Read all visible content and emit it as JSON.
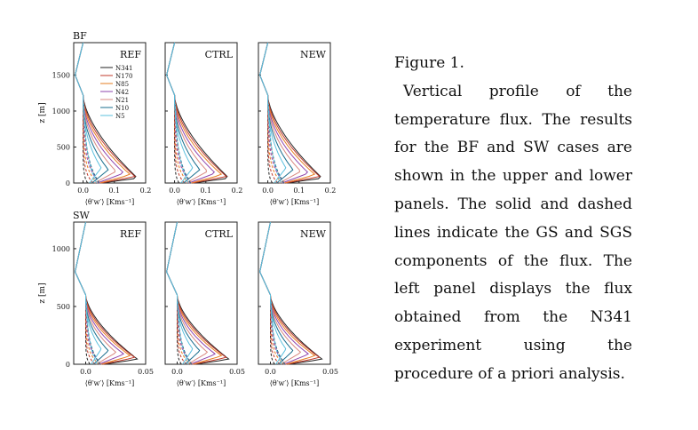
{
  "caption": {
    "title": "Figure 1.",
    "body": "Vertical profile of the temperature flux. The results for the BF and SW cases are shown in the upper and lower panels. The solid and dashed lines indicate the GS and SGS components of the flux. The left panel displays the flux obtained from the N341 experiment using the procedure of a priori analysis."
  },
  "colors": {
    "N341": "#222222",
    "N170": "#c0392b",
    "N85": "#e67e22",
    "N42": "#8e44ad",
    "N21": "#d98880",
    "N10": "#1a6e8e",
    "N5": "#5bc0de"
  },
  "chart_data": [
    {
      "row": "BF",
      "type": "line",
      "ylabel": "z [m]",
      "xlabel": "⟨θ′w′⟩ [Kms⁻¹]",
      "xlim": [
        -0.03,
        0.2
      ],
      "ylim": [
        0,
        1950
      ],
      "xticks": [
        "0.0",
        "0.1",
        "0.2"
      ],
      "yticks": [
        "0",
        "500",
        "1000",
        "1500"
      ],
      "panels": [
        "REF",
        "CTRL",
        "NEW"
      ],
      "series": [
        "N341",
        "N170",
        "N85",
        "N42",
        "N21",
        "N10",
        "N5"
      ],
      "linestyles": {
        "solid": "GS",
        "dashed": "SGS"
      }
    },
    {
      "row": "SW",
      "type": "line",
      "ylabel": "z [m]",
      "xlabel": "⟨θ′w′⟩ [Kms⁻¹]",
      "xlim": [
        -0.01,
        0.05
      ],
      "ylim": [
        0,
        1230
      ],
      "xticks": [
        "0.0",
        "0.05"
      ],
      "yticks": [
        "0",
        "500",
        "1000"
      ],
      "panels": [
        "REF",
        "CTRL",
        "NEW"
      ],
      "series": [
        "N341",
        "N170",
        "N85",
        "N42",
        "N21",
        "N10",
        "N5"
      ],
      "linestyles": {
        "solid": "GS",
        "dashed": "SGS"
      }
    }
  ]
}
